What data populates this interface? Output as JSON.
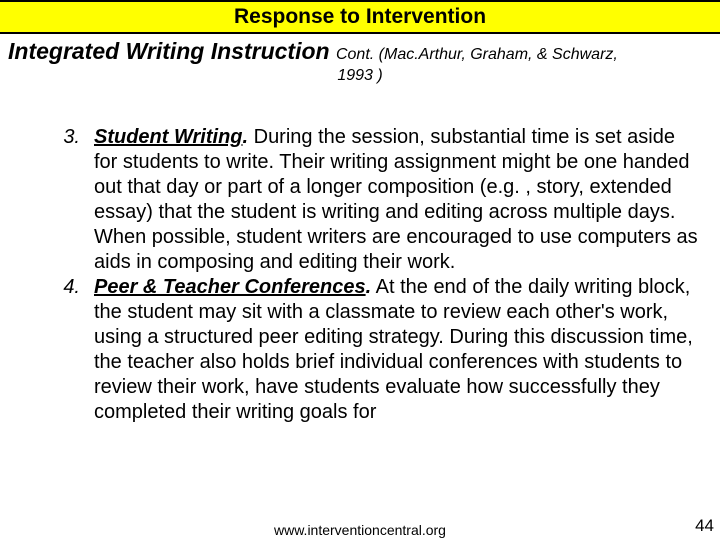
{
  "header": {
    "title": "Response to Intervention"
  },
  "subtitle": {
    "main": "Integrated Writing Instruction",
    "cont": "Cont. (Mac.Arthur, Graham, & Schwarz,",
    "year": "1993 )"
  },
  "items": [
    {
      "num": "3.",
      "lead": "Student Writing",
      "dot": ".",
      "text": " During the session, substantial time is set aside for students to write. Their writing assignment might be one handed out that day or part of a longer composition (e.g. , story, extended essay) that the student is writing and editing across multiple days. When possible, student writers are encouraged to use computers as aids in composing and editing their work."
    },
    {
      "num": "4.",
      "lead": "Peer & Teacher Conferences",
      "dot": ".",
      "text": "  At the end of the daily writing block, the student may sit with a classmate to review each other's work, using a structured peer editing strategy. During this discussion time, the teacher also holds brief individual conferences with students to review their work, have students evaluate how successfully they completed their writing goals for"
    }
  ],
  "footer": {
    "url": "www.interventioncentral.org",
    "page": "44"
  },
  "colors": {
    "header_bg": "#ffff00",
    "border": "#000000",
    "background": "#ffffff",
    "text": "#000000"
  }
}
